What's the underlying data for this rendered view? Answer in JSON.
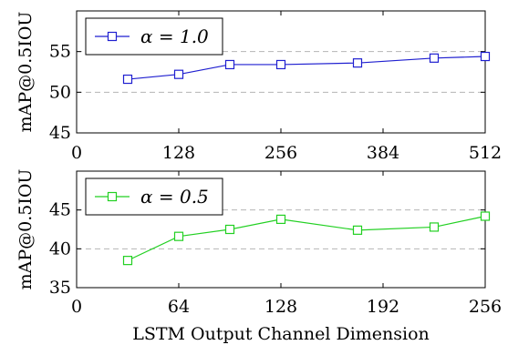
{
  "chart_data": [
    {
      "type": "line",
      "legend": "α = 1.0",
      "legend_position": "top-left",
      "color": "#1f1fd0",
      "ylabel": "mAP@0.5IOU",
      "xlim": [
        0,
        512
      ],
      "ylim": [
        45,
        60
      ],
      "xticks": [
        0,
        128,
        256,
        384,
        512
      ],
      "yticks": [
        45,
        50,
        55
      ],
      "grid": "horizontal dashed",
      "x": [
        64,
        128,
        192,
        256,
        352,
        448,
        512
      ],
      "values": [
        51.6,
        52.2,
        53.4,
        53.4,
        53.6,
        54.2,
        54.4
      ]
    },
    {
      "type": "line",
      "legend": "α = 0.5",
      "legend_position": "top-left",
      "color": "#22d022",
      "ylabel": "mAP@0.5IOU",
      "xlabel": "LSTM Output Channel Dimension",
      "xlim": [
        0,
        256
      ],
      "ylim": [
        35,
        50
      ],
      "xticks": [
        0,
        64,
        128,
        192,
        256
      ],
      "yticks": [
        35,
        40,
        45
      ],
      "grid": "horizontal dashed",
      "x": [
        32,
        64,
        96,
        128,
        176,
        224,
        256
      ],
      "values": [
        38.5,
        41.6,
        42.5,
        43.8,
        42.4,
        42.8,
        44.2
      ]
    }
  ]
}
